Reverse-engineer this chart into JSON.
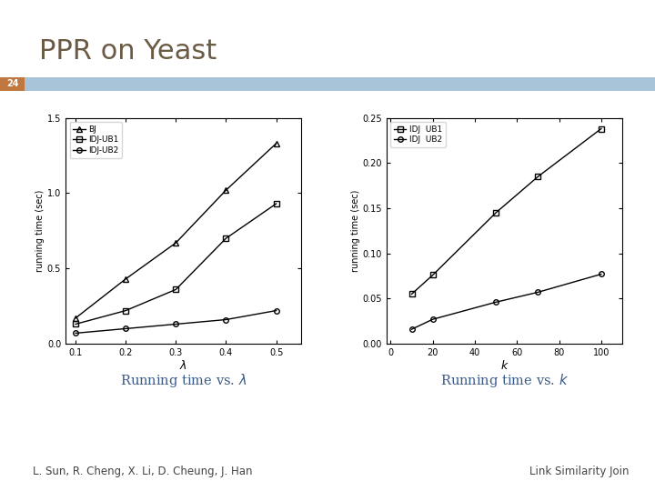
{
  "title": "PPR on Yeast",
  "slide_number": "24",
  "title_color": "#6b5b45",
  "bar_color": "#a8c4d8",
  "bar_accent_color": "#c07840",
  "footer_left": "L. Sun, R. Cheng, X. Li, D. Cheung, J. Han",
  "footer_right": "Link Similarity Join",
  "plot1": {
    "xlabel": "λ",
    "ylabel": "running time (sec)",
    "caption": "Running time vs. λ",
    "xlim": [
      0.08,
      0.55
    ],
    "ylim": [
      0,
      1.5
    ],
    "xticks": [
      0.1,
      0.2,
      0.3,
      0.4,
      0.5
    ],
    "yticks": [
      0,
      0.5,
      1.0,
      1.5
    ],
    "series": [
      {
        "label": "BJ",
        "marker": "^",
        "fillstyle": "none",
        "color": "#000000",
        "x": [
          0.1,
          0.2,
          0.3,
          0.4,
          0.5
        ],
        "y": [
          0.17,
          0.43,
          0.67,
          1.02,
          1.33
        ]
      },
      {
        "label": "IDJ-UB1",
        "marker": "s",
        "fillstyle": "none",
        "color": "#000000",
        "x": [
          0.1,
          0.2,
          0.3,
          0.4,
          0.5
        ],
        "y": [
          0.13,
          0.22,
          0.36,
          0.7,
          0.93
        ]
      },
      {
        "label": "IDJ-UB2",
        "marker": "o",
        "fillstyle": "none",
        "color": "#000000",
        "x": [
          0.1,
          0.2,
          0.3,
          0.4,
          0.5
        ],
        "y": [
          0.07,
          0.1,
          0.13,
          0.16,
          0.22
        ]
      }
    ]
  },
  "plot2": {
    "xlabel": "k",
    "ylabel": "running time (sec)",
    "caption": "Running time vs. k",
    "xlim": [
      -2,
      110
    ],
    "ylim": [
      0,
      0.25
    ],
    "xticks": [
      0,
      20,
      40,
      60,
      80,
      100
    ],
    "yticks": [
      0,
      0.05,
      0.1,
      0.15,
      0.2,
      0.25
    ],
    "series": [
      {
        "label": "IDJ  UB1",
        "marker": "s",
        "fillstyle": "none",
        "color": "#000000",
        "x": [
          10,
          20,
          50,
          70,
          100
        ],
        "y": [
          0.055,
          0.076,
          0.145,
          0.185,
          0.238
        ]
      },
      {
        "label": "IDJ  UB2",
        "marker": "o",
        "fillstyle": "none",
        "color": "#000000",
        "x": [
          10,
          20,
          50,
          70,
          100
        ],
        "y": [
          0.016,
          0.027,
          0.046,
          0.057,
          0.077
        ]
      }
    ]
  }
}
